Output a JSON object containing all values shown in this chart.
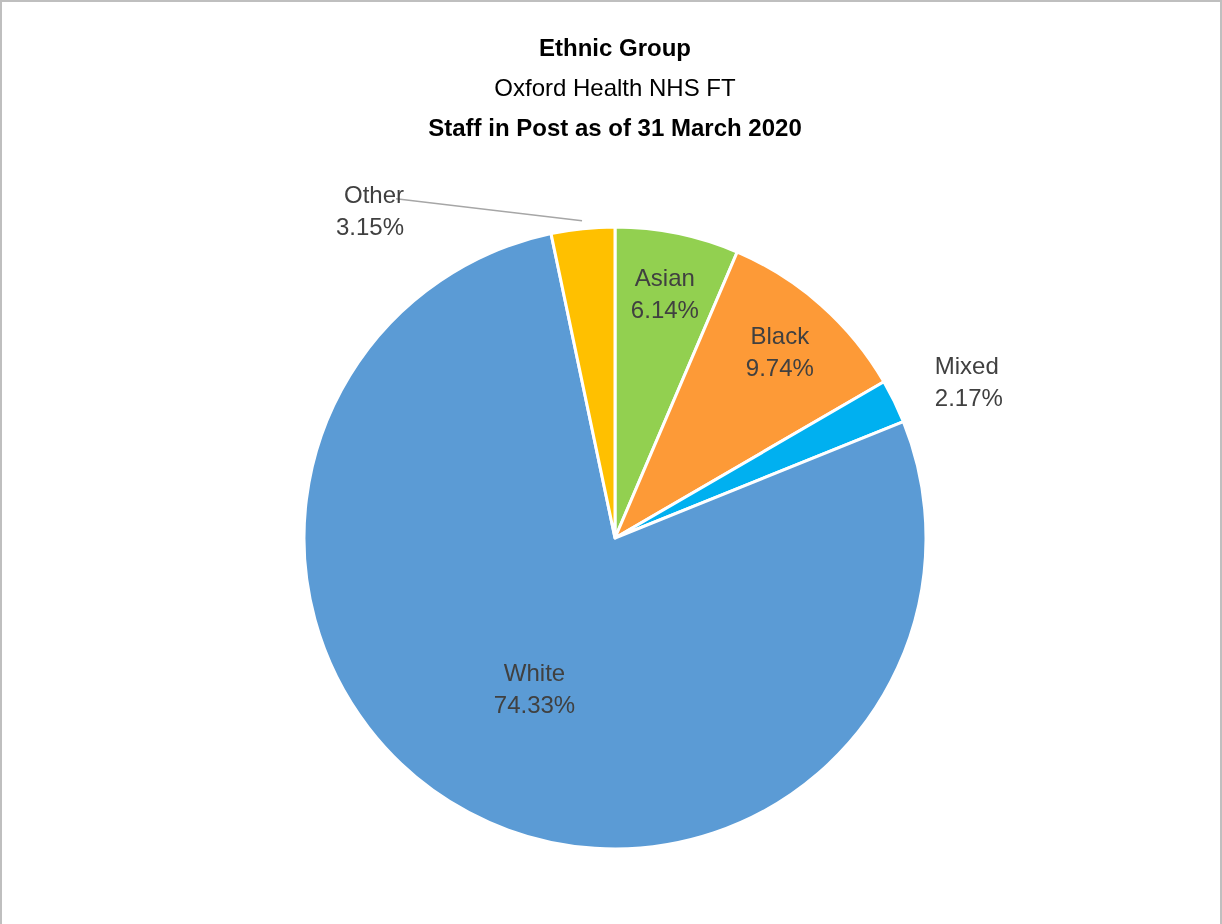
{
  "chart_data": {
    "type": "pie",
    "title": "Ethnic Group",
    "subtitle": "Oxford Health NHS FT",
    "annotations": [
      "Staff in Post as of 31 March 2020"
    ],
    "categories": [
      "Asian",
      "Black",
      "Mixed",
      "White",
      "Other"
    ],
    "values": [
      6.14,
      9.74,
      2.17,
      74.33,
      3.15
    ],
    "value_labels": [
      "6.14%",
      "9.74%",
      "2.17%",
      "74.33%",
      "3.15%"
    ],
    "colors": [
      "#92d050",
      "#fd9a37",
      "#00b0f0",
      "#5b9bd5",
      "#ffc000"
    ]
  }
}
